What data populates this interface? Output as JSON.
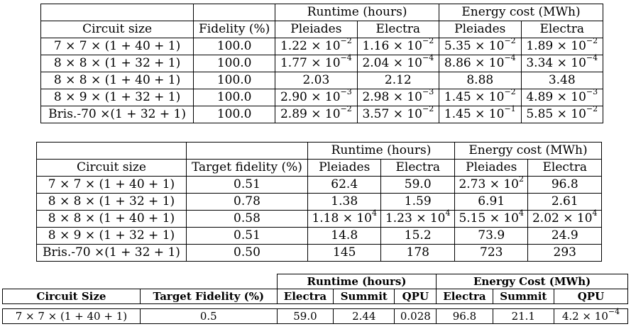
{
  "table1": {
    "group_headers": {
      "runtime": "Runtime (hours)",
      "energy": "Energy cost (MWh)"
    },
    "column_headers": [
      "Circuit size",
      "Fidelity (%)",
      "Pleiades",
      "Electra",
      "Pleiades",
      "Electra"
    ],
    "rows": [
      {
        "circuit": "7 × 7 × (1 + 40 + 1)",
        "fidelity": "100.0",
        "rt_pleiades": {
          "m": "1.22 × 10",
          "e": "−2"
        },
        "rt_electra": {
          "m": "1.16 × 10",
          "e": "−2"
        },
        "en_pleiades": {
          "m": "5.35 × 10",
          "e": "−2"
        },
        "en_electra": {
          "m": "1.89 × 10",
          "e": "−2"
        }
      },
      {
        "circuit": "8 × 8 × (1 + 32 + 1)",
        "fidelity": "100.0",
        "rt_pleiades": {
          "m": "1.77 × 10",
          "e": "−4"
        },
        "rt_electra": {
          "m": "2.04 × 10",
          "e": "−4"
        },
        "en_pleiades": {
          "m": "8.86 × 10",
          "e": "−4"
        },
        "en_electra": {
          "m": "3.34 × 10",
          "e": "−4"
        }
      },
      {
        "circuit": "8 × 8 × (1 + 40 + 1)",
        "fidelity": "100.0",
        "rt_pleiades": {
          "m": "2.03",
          "e": ""
        },
        "rt_electra": {
          "m": "2.12",
          "e": ""
        },
        "en_pleiades": {
          "m": "8.88",
          "e": ""
        },
        "en_electra": {
          "m": "3.48",
          "e": ""
        }
      },
      {
        "circuit": "8 × 9 × (1 + 32 + 1)",
        "fidelity": "100.0",
        "rt_pleiades": {
          "m": "2.90 × 10",
          "e": "−3"
        },
        "rt_electra": {
          "m": "2.98 × 10",
          "e": "−3"
        },
        "en_pleiades": {
          "m": "1.45 × 10",
          "e": "−2"
        },
        "en_electra": {
          "m": "4.89 × 10",
          "e": "−3"
        }
      },
      {
        "circuit": "Bris.-70 ×(1 + 32 + 1)",
        "fidelity": "100.0",
        "rt_pleiades": {
          "m": "2.89 × 10",
          "e": "−2"
        },
        "rt_electra": {
          "m": "3.57 × 10",
          "e": "−2"
        },
        "en_pleiades": {
          "m": "1.45 × 10",
          "e": "−1"
        },
        "en_electra": {
          "m": "5.85 × 10",
          "e": "−2"
        }
      }
    ]
  },
  "table2": {
    "group_headers": {
      "runtime": "Runtime (hours)",
      "energy": "Energy cost (MWh)"
    },
    "column_headers": [
      "Circuit size",
      "Target fidelity (%)",
      "Pleiades",
      "Electra",
      "Pleiades",
      "Electra"
    ],
    "rows": [
      {
        "circuit": "7 × 7 × (1 + 40 + 1)",
        "fidelity": "0.51",
        "rt_pleiades": {
          "m": "62.4",
          "e": ""
        },
        "rt_electra": {
          "m": "59.0",
          "e": ""
        },
        "en_pleiades": {
          "m": "2.73 × 10",
          "e": "2"
        },
        "en_electra": {
          "m": "96.8",
          "e": ""
        }
      },
      {
        "circuit": "8 × 8 × (1 + 32 + 1)",
        "fidelity": "0.78",
        "rt_pleiades": {
          "m": "1.38",
          "e": ""
        },
        "rt_electra": {
          "m": "1.59",
          "e": ""
        },
        "en_pleiades": {
          "m": "6.91",
          "e": ""
        },
        "en_electra": {
          "m": "2.61",
          "e": ""
        }
      },
      {
        "circuit": "8 × 8 × (1 + 40 + 1)",
        "fidelity": "0.58",
        "rt_pleiades": {
          "m": "1.18 × 10",
          "e": "4"
        },
        "rt_electra": {
          "m": "1.23 × 10",
          "e": "4"
        },
        "en_pleiades": {
          "m": "5.15 × 10",
          "e": "4"
        },
        "en_electra": {
          "m": "2.02 × 10",
          "e": "4"
        }
      },
      {
        "circuit": "8 × 9 × (1 + 32 + 1)",
        "fidelity": "0.51",
        "rt_pleiades": {
          "m": "14.8",
          "e": ""
        },
        "rt_electra": {
          "m": "15.2",
          "e": ""
        },
        "en_pleiades": {
          "m": "73.9",
          "e": ""
        },
        "en_electra": {
          "m": "24.9",
          "e": ""
        }
      },
      {
        "circuit": "Bris.-70 ×(1 + 32 + 1)",
        "fidelity": "0.50",
        "rt_pleiades": {
          "m": "145",
          "e": ""
        },
        "rt_electra": {
          "m": "178",
          "e": ""
        },
        "en_pleiades": {
          "m": "723",
          "e": ""
        },
        "en_electra": {
          "m": "293",
          "e": ""
        }
      }
    ]
  },
  "table3": {
    "group_headers": {
      "runtime": "Runtime (hours)",
      "energy": "Energy Cost (MWh)"
    },
    "column_headers": [
      "Circuit Size",
      "Target Fidelity (%)",
      "Electra",
      "Summit",
      "QPU",
      "Electra",
      "Summit",
      "QPU"
    ],
    "row": {
      "circuit": "7 × 7 × (1 + 40 + 1)",
      "fidelity": "0.5",
      "rt_electra": "59.0",
      "rt_summit": "2.44",
      "rt_qpu": "0.028",
      "en_electra": "96.8",
      "en_summit": "21.1",
      "en_qpu": {
        "m": "4.2 × 10",
        "e": "−4"
      }
    }
  }
}
